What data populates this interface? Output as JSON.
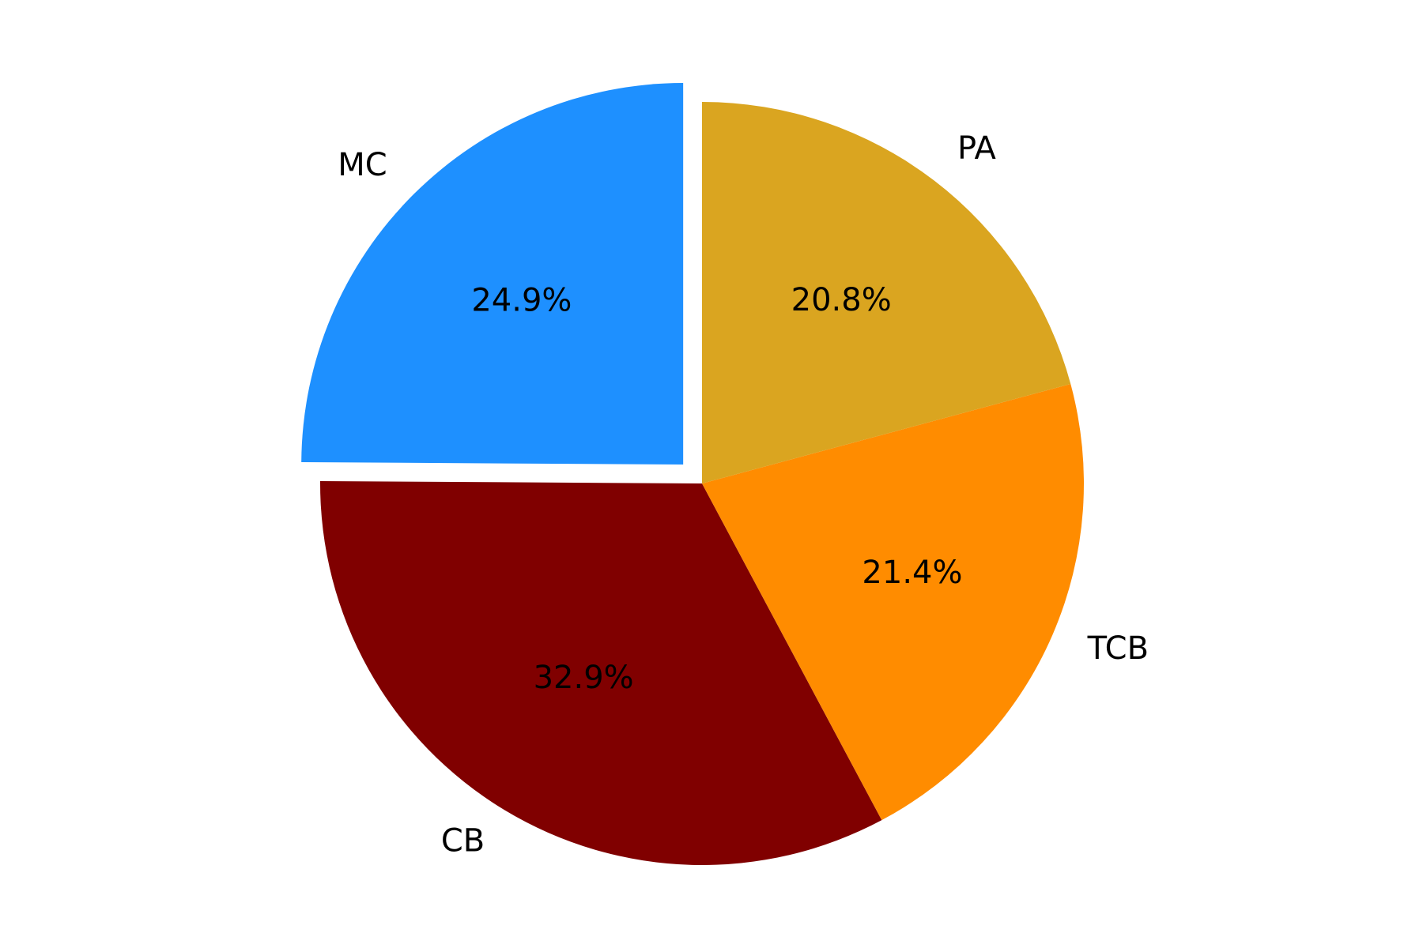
{
  "chart_data": {
    "type": "pie",
    "categories": [
      "MC",
      "CB",
      "TCB",
      "PA"
    ],
    "values": [
      24.9,
      32.9,
      21.4,
      20.8
    ],
    "value_labels": [
      "24.9%",
      "32.9%",
      "21.4%",
      "20.8%"
    ],
    "colors": [
      "#1e90ff",
      "#800000",
      "#ff8c00",
      "#daa520"
    ],
    "explode": [
      0.07,
      0,
      0,
      0
    ],
    "start_angle_deg": 90,
    "direction": "counterclockwise",
    "legend": "none",
    "title": ""
  }
}
